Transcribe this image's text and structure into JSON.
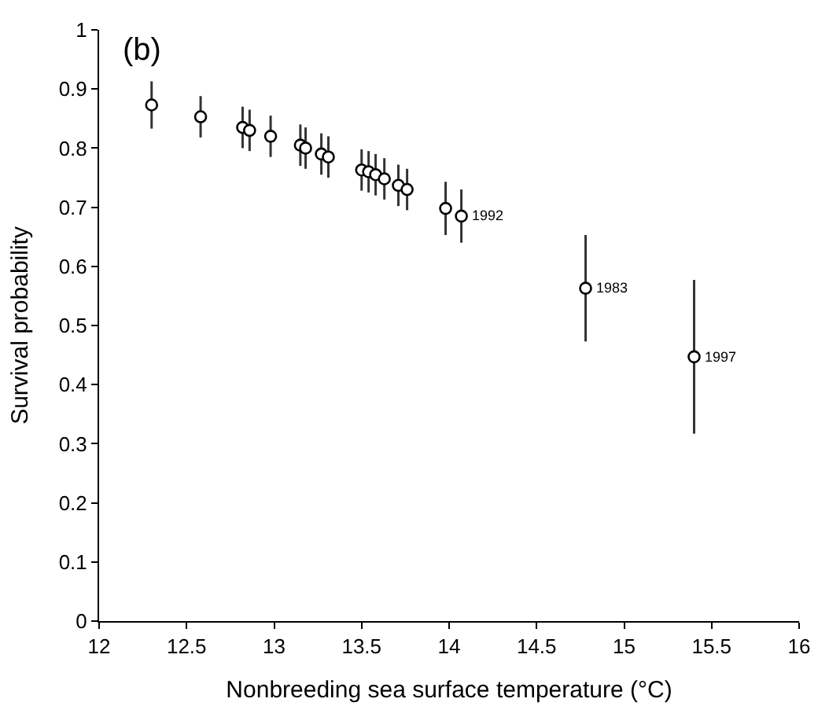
{
  "chart_data": {
    "type": "scatter",
    "title": "(b)",
    "xlabel": "Nonbreeding sea surface temperature (°C)",
    "ylabel": "Survival probability",
    "x": [
      12.3,
      12.58,
      12.82,
      12.86,
      12.98,
      13.15,
      13.18,
      13.27,
      13.31,
      13.5,
      13.54,
      13.58,
      13.63,
      13.71,
      13.76,
      13.98,
      14.07,
      14.78,
      15.4
    ],
    "values": [
      0.873,
      0.853,
      0.835,
      0.83,
      0.82,
      0.805,
      0.8,
      0.79,
      0.785,
      0.763,
      0.76,
      0.755,
      0.748,
      0.737,
      0.73,
      0.698,
      0.685,
      0.563,
      0.447
    ],
    "errors": [
      0.04,
      0.035,
      0.035,
      0.035,
      0.035,
      0.035,
      0.035,
      0.035,
      0.035,
      0.035,
      0.035,
      0.035,
      0.035,
      0.035,
      0.035,
      0.045,
      0.045,
      0.09,
      0.13
    ],
    "color": "#000000",
    "marker": "circle",
    "xlim": [
      12,
      16
    ],
    "xticks": [
      12,
      12.5,
      13,
      13.5,
      14,
      14.5,
      15,
      15.5,
      16
    ],
    "ylim": [
      0,
      1
    ],
    "yticks": [
      0,
      0.1,
      0.2,
      0.3,
      0.4,
      0.5,
      0.6,
      0.7,
      0.8,
      0.9,
      1
    ],
    "annotations": [
      {
        "text": "1992",
        "x": 14.07,
        "y": 0.685
      },
      {
        "text": "1983",
        "x": 14.78,
        "y": 0.563
      },
      {
        "text": "1997",
        "x": 15.4,
        "y": 0.447
      }
    ]
  }
}
